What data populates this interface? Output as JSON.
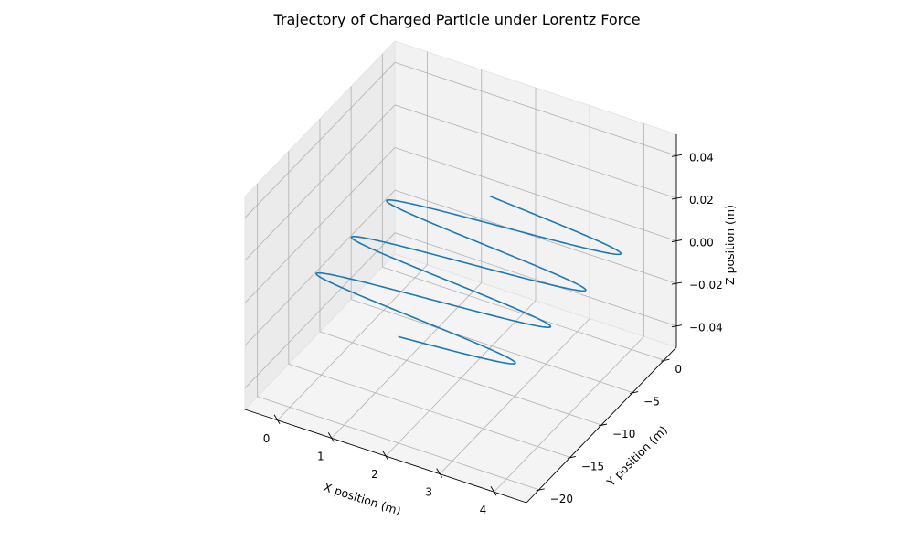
{
  "chart_data": {
    "type": "line",
    "projection": "3d",
    "title": "Trajectory of Charged Particle under Lorentz Force",
    "xlabel": "X position (m)",
    "ylabel": "Y position (m)",
    "zlabel": "Z position (m)",
    "xlim": [
      -0.6,
      4.6
    ],
    "ylim": [
      -22,
      2
    ],
    "zlim": [
      -0.05,
      0.05
    ],
    "xticks": [
      0,
      1,
      2,
      3,
      4
    ],
    "yticks": [
      0,
      -5,
      -10,
      -15,
      -20
    ],
    "zticks": [
      0.04,
      0.02,
      0.0,
      -0.02,
      -0.04
    ],
    "xtick_labels": [
      "0",
      "1",
      "2",
      "3",
      "4"
    ],
    "ytick_labels": [
      "0",
      "−5",
      "−10",
      "−15",
      "−20"
    ],
    "ztick_labels": [
      "0.04",
      "0.02",
      "0.00",
      "−0.02",
      "−0.04"
    ],
    "grid": true,
    "series": [
      {
        "name": "",
        "color": "#1f77b4",
        "parametric": "helix",
        "x_center": 2.0,
        "radius": 2.0,
        "turns": 3.55,
        "y_range": [
          -20.0,
          0.0
        ],
        "z": 0.0
      }
    ]
  }
}
